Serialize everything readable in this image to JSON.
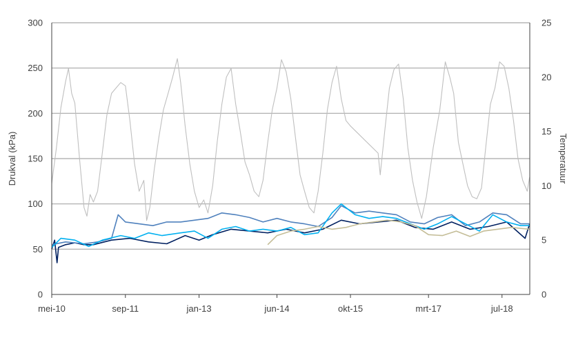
{
  "chart_data": {
    "type": "line",
    "ylabel": "Drukval (kPa)",
    "y2label": "Temperatuur",
    "ylim": [
      0,
      300
    ],
    "y2lim": [
      0,
      25
    ],
    "yticks": [
      0,
      50,
      100,
      150,
      200,
      250,
      300
    ],
    "y2ticks": [
      0,
      5,
      10,
      15,
      20,
      25
    ],
    "xlim": [
      "2010-05-01",
      "2019-01-01"
    ],
    "xticks": [
      {
        "label": "mei-10",
        "date": "2010-05-01"
      },
      {
        "label": "sep-11",
        "date": "2011-09-01"
      },
      {
        "label": "jan-13",
        "date": "2013-01-01"
      },
      {
        "label": "jun-14",
        "date": "2014-06-01"
      },
      {
        "label": "okt-15",
        "date": "2015-10-01"
      },
      {
        "label": "mrt-17",
        "date": "2017-03-01"
      },
      {
        "label": "jul-18",
        "date": "2018-07-01"
      }
    ],
    "grid": true,
    "colors": {
      "temperature": "#bfbfbf",
      "navy": "#002060",
      "steel": "#4f81bd",
      "cyan": "#00b0f0",
      "tan": "#c4bd97",
      "grid": "#a6a6a6",
      "axis": "#404040"
    },
    "series": [
      {
        "key": "temperature",
        "axis": "right",
        "color": "#bfbfbf",
        "points": [
          [
            "2010-05-01",
            10.2
          ],
          [
            "2010-06-01",
            13.5
          ],
          [
            "2010-07-01",
            17.2
          ],
          [
            "2010-08-01",
            19.6
          ],
          [
            "2010-08-20",
            20.8
          ],
          [
            "2010-09-10",
            18.5
          ],
          [
            "2010-10-01",
            17.6
          ],
          [
            "2010-11-01",
            12.5
          ],
          [
            "2010-12-01",
            8.0
          ],
          [
            "2010-12-20",
            7.2
          ],
          [
            "2011-01-10",
            9.2
          ],
          [
            "2011-02-01",
            8.5
          ],
          [
            "2011-03-01",
            9.5
          ],
          [
            "2011-04-01",
            13.0
          ],
          [
            "2011-05-01",
            16.5
          ],
          [
            "2011-06-01",
            18.5
          ],
          [
            "2011-07-01",
            19.0
          ],
          [
            "2011-08-01",
            19.5
          ],
          [
            "2011-09-01",
            19.2
          ],
          [
            "2011-10-01",
            16.0
          ],
          [
            "2011-11-01",
            12.0
          ],
          [
            "2011-12-01",
            9.5
          ],
          [
            "2012-01-01",
            10.5
          ],
          [
            "2012-01-20",
            6.8
          ],
          [
            "2012-02-10",
            8.0
          ],
          [
            "2012-03-10",
            11.5
          ],
          [
            "2012-04-10",
            14.5
          ],
          [
            "2012-05-10",
            17.0
          ],
          [
            "2012-06-10",
            18.5
          ],
          [
            "2012-07-10",
            20.0
          ],
          [
            "2012-08-10",
            21.7
          ],
          [
            "2012-09-01",
            19.5
          ],
          [
            "2012-10-01",
            15.5
          ],
          [
            "2012-11-01",
            12.0
          ],
          [
            "2012-12-01",
            9.5
          ],
          [
            "2013-01-01",
            8.0
          ],
          [
            "2013-02-01",
            8.7
          ],
          [
            "2013-03-01",
            7.5
          ],
          [
            "2013-04-01",
            10.0
          ],
          [
            "2013-05-01",
            14.0
          ],
          [
            "2013-06-01",
            17.5
          ],
          [
            "2013-07-01",
            20.0
          ],
          [
            "2013-08-01",
            20.8
          ],
          [
            "2013-09-01",
            17.5
          ],
          [
            "2013-10-01",
            15.0
          ],
          [
            "2013-11-01",
            12.2
          ],
          [
            "2013-12-01",
            11.0
          ],
          [
            "2014-01-01",
            9.5
          ],
          [
            "2014-02-01",
            9.0
          ],
          [
            "2014-03-01",
            10.5
          ],
          [
            "2014-04-01",
            14.0
          ],
          [
            "2014-05-01",
            17.0
          ],
          [
            "2014-06-01",
            19.0
          ],
          [
            "2014-07-01",
            21.6
          ],
          [
            "2014-08-01",
            20.5
          ],
          [
            "2014-09-01",
            18.0
          ],
          [
            "2014-10-01",
            14.5
          ],
          [
            "2014-11-01",
            11.0
          ],
          [
            "2014-12-01",
            9.5
          ],
          [
            "2015-01-01",
            8.0
          ],
          [
            "2015-02-01",
            7.5
          ],
          [
            "2015-03-01",
            9.5
          ],
          [
            "2015-04-01",
            13.0
          ],
          [
            "2015-05-01",
            17.0
          ],
          [
            "2015-06-01",
            19.5
          ],
          [
            "2015-07-01",
            21.0
          ],
          [
            "2015-08-01",
            18.0
          ],
          [
            "2015-09-01",
            16.0
          ],
          [
            "2015-10-01",
            15.5
          ],
          [
            "2016-04-01",
            13.0
          ],
          [
            "2016-04-15",
            11.0
          ],
          [
            "2016-05-15",
            15.0
          ],
          [
            "2016-06-15",
            19.0
          ],
          [
            "2016-07-15",
            20.7
          ],
          [
            "2016-08-15",
            21.2
          ],
          [
            "2016-09-15",
            18.0
          ],
          [
            "2016-10-15",
            13.5
          ],
          [
            "2016-11-15",
            10.5
          ],
          [
            "2016-12-15",
            8.5
          ],
          [
            "2017-01-15",
            7.0
          ],
          [
            "2017-02-15",
            9.0
          ],
          [
            "2017-04-01",
            13.5
          ],
          [
            "2017-05-15",
            17.0
          ],
          [
            "2017-06-20",
            21.4
          ],
          [
            "2017-07-20",
            20.0
          ],
          [
            "2017-08-15",
            18.5
          ],
          [
            "2017-09-15",
            14.0
          ],
          [
            "2017-10-15",
            12.0
          ],
          [
            "2017-11-15",
            10.0
          ],
          [
            "2017-12-15",
            9.0
          ],
          [
            "2018-01-15",
            8.8
          ],
          [
            "2018-02-15",
            9.8
          ],
          [
            "2018-03-15",
            13.5
          ],
          [
            "2018-04-15",
            17.5
          ],
          [
            "2018-05-15",
            19.0
          ],
          [
            "2018-06-15",
            21.4
          ],
          [
            "2018-07-15",
            21.0
          ],
          [
            "2018-08-15",
            19.0
          ],
          [
            "2018-09-15",
            16.0
          ],
          [
            "2018-10-15",
            12.5
          ],
          [
            "2018-11-15",
            10.5
          ],
          [
            "2018-12-15",
            9.5
          ],
          [
            "2018-12-31",
            10.8
          ]
        ]
      },
      {
        "key": "navy",
        "axis": "left",
        "color": "#002060",
        "points": [
          [
            "2010-05-01",
            50
          ],
          [
            "2010-05-20",
            60
          ],
          [
            "2010-06-05",
            35
          ],
          [
            "2010-06-15",
            52
          ],
          [
            "2010-08-01",
            55
          ],
          [
            "2010-10-01",
            57
          ],
          [
            "2010-12-01",
            55
          ],
          [
            "2011-02-01",
            55
          ],
          [
            "2011-06-01",
            60
          ],
          [
            "2011-10-01",
            62
          ],
          [
            "2012-02-01",
            58
          ],
          [
            "2012-06-01",
            56
          ],
          [
            "2012-10-01",
            65
          ],
          [
            "2013-01-01",
            60
          ],
          [
            "2013-04-01",
            66
          ],
          [
            "2013-08-01",
            72
          ],
          [
            "2013-12-01",
            70
          ],
          [
            "2014-04-01",
            68
          ],
          [
            "2014-08-01",
            72
          ],
          [
            "2014-12-01",
            68
          ],
          [
            "2015-04-01",
            72
          ],
          [
            "2015-08-01",
            82
          ],
          [
            "2015-12-01",
            78
          ],
          [
            "2016-04-01",
            80
          ],
          [
            "2016-08-01",
            82
          ],
          [
            "2016-12-01",
            74
          ],
          [
            "2017-04-01",
            72
          ],
          [
            "2017-08-01",
            80
          ],
          [
            "2017-12-01",
            72
          ],
          [
            "2018-04-01",
            75
          ],
          [
            "2018-08-01",
            80
          ],
          [
            "2018-12-01",
            62
          ],
          [
            "2018-12-31",
            78
          ]
        ]
      },
      {
        "key": "steel",
        "axis": "left",
        "color": "#4f81bd",
        "points": [
          [
            "2010-05-01",
            55
          ],
          [
            "2010-08-01",
            58
          ],
          [
            "2010-12-01",
            56
          ],
          [
            "2011-03-01",
            58
          ],
          [
            "2011-06-01",
            62
          ],
          [
            "2011-07-15",
            88
          ],
          [
            "2011-09-01",
            80
          ],
          [
            "2011-12-01",
            78
          ],
          [
            "2012-03-01",
            76
          ],
          [
            "2012-06-01",
            80
          ],
          [
            "2012-09-01",
            80
          ],
          [
            "2012-12-01",
            82
          ],
          [
            "2013-03-01",
            84
          ],
          [
            "2013-06-01",
            90
          ],
          [
            "2013-09-01",
            88
          ],
          [
            "2013-12-01",
            85
          ],
          [
            "2014-03-01",
            80
          ],
          [
            "2014-06-01",
            84
          ],
          [
            "2014-09-01",
            80
          ],
          [
            "2014-12-01",
            78
          ],
          [
            "2015-03-01",
            75
          ],
          [
            "2015-06-01",
            85
          ],
          [
            "2015-08-01",
            98
          ],
          [
            "2015-11-01",
            90
          ],
          [
            "2016-02-01",
            92
          ],
          [
            "2016-05-01",
            90
          ],
          [
            "2016-08-01",
            88
          ],
          [
            "2016-11-01",
            80
          ],
          [
            "2017-02-01",
            78
          ],
          [
            "2017-05-01",
            85
          ],
          [
            "2017-08-01",
            88
          ],
          [
            "2017-11-01",
            76
          ],
          [
            "2018-02-01",
            80
          ],
          [
            "2018-05-01",
            90
          ],
          [
            "2018-08-01",
            88
          ],
          [
            "2018-11-01",
            78
          ],
          [
            "2018-12-31",
            78
          ]
        ]
      },
      {
        "key": "cyan",
        "axis": "left",
        "color": "#00b0f0",
        "points": [
          [
            "2010-05-01",
            52
          ],
          [
            "2010-07-01",
            62
          ],
          [
            "2010-10-01",
            60
          ],
          [
            "2011-01-01",
            53
          ],
          [
            "2011-04-01",
            60
          ],
          [
            "2011-08-01",
            65
          ],
          [
            "2011-11-01",
            62
          ],
          [
            "2012-02-01",
            68
          ],
          [
            "2012-05-01",
            65
          ],
          [
            "2012-09-01",
            68
          ],
          [
            "2012-12-01",
            70
          ],
          [
            "2013-03-01",
            62
          ],
          [
            "2013-06-01",
            72
          ],
          [
            "2013-09-01",
            75
          ],
          [
            "2013-12-01",
            70
          ],
          [
            "2014-03-01",
            72
          ],
          [
            "2014-06-01",
            70
          ],
          [
            "2014-09-01",
            74
          ],
          [
            "2014-12-01",
            66
          ],
          [
            "2015-03-01",
            68
          ],
          [
            "2015-06-01",
            90
          ],
          [
            "2015-08-01",
            100
          ],
          [
            "2015-11-01",
            88
          ],
          [
            "2016-02-01",
            84
          ],
          [
            "2016-05-01",
            86
          ],
          [
            "2016-08-01",
            84
          ],
          [
            "2016-11-01",
            78
          ],
          [
            "2017-02-01",
            72
          ],
          [
            "2017-05-01",
            78
          ],
          [
            "2017-08-01",
            86
          ],
          [
            "2017-11-01",
            78
          ],
          [
            "2018-02-01",
            70
          ],
          [
            "2018-05-01",
            88
          ],
          [
            "2018-08-01",
            80
          ],
          [
            "2018-11-01",
            76
          ],
          [
            "2018-12-31",
            76
          ]
        ]
      },
      {
        "key": "tan",
        "axis": "left",
        "color": "#c4bd97",
        "points": [
          [
            "2014-04-01",
            55
          ],
          [
            "2014-06-01",
            65
          ],
          [
            "2014-09-01",
            70
          ],
          [
            "2014-12-01",
            72
          ],
          [
            "2015-03-01",
            75
          ],
          [
            "2015-06-01",
            72
          ],
          [
            "2015-09-01",
            74
          ],
          [
            "2015-12-01",
            78
          ],
          [
            "2016-03-01",
            80
          ],
          [
            "2016-06-01",
            82
          ],
          [
            "2016-09-01",
            80
          ],
          [
            "2016-12-01",
            76
          ],
          [
            "2017-03-01",
            66
          ],
          [
            "2017-06-01",
            65
          ],
          [
            "2017-09-01",
            70
          ],
          [
            "2017-12-01",
            64
          ],
          [
            "2018-03-01",
            70
          ],
          [
            "2018-06-01",
            72
          ],
          [
            "2018-09-01",
            74
          ],
          [
            "2018-12-31",
            72
          ]
        ]
      }
    ]
  }
}
